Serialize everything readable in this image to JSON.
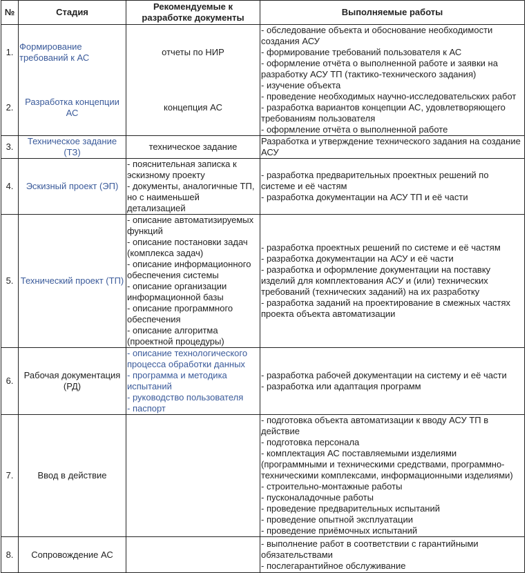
{
  "headers": {
    "num": "№",
    "stage": "Стадия",
    "docs": "Рекомендуемые к разработке документы",
    "works": "Выполняемые работы"
  },
  "rows": [
    {
      "num": "1.",
      "stage": "Формирование требований к АС",
      "stage_link": true,
      "docs": [
        "отчеты по НИР"
      ],
      "docs_align": "center",
      "works": [
        "- обследование объекта и обоснование необходимости создания АСУ",
        "- формирование требований пользователя к АС",
        "- оформление отчёта о выполненной работе и заявки на разработку АСУ ТП (тактико-технического задания)"
      ]
    },
    {
      "num": "2.",
      "stage": "Разработка концепции АС",
      "stage_link": true,
      "docs": [
        "концепция АС"
      ],
      "docs_align": "center",
      "works": [
        "- изучение объекта",
        "- проведение необходимых научно-исследовательских работ",
        "- разработка вариантов концепции АС, удовлетворяющего требованиям пользователя",
        "- оформление отчёта о выполненной работе"
      ]
    },
    {
      "num": "3.",
      "stage": "Техническое задание (ТЗ)",
      "stage_link": true,
      "docs": [
        "техническое задание"
      ],
      "docs_align": "center",
      "works": [
        "Разработка и утверждение технического задания на создание АСУ"
      ]
    },
    {
      "num": "4.",
      "stage": "Эскизный проект (ЭП)",
      "stage_link": true,
      "docs": [
        "- пояснительная записка к эскизному проекту",
        "- документы, аналогичные ТП, но с наименьшей детализацией"
      ],
      "docs_align": "left",
      "works": [
        "- разработка предварительных проектных решений по системе и её частям",
        "- разработка документации на АСУ ТП и её части"
      ]
    },
    {
      "num": "5.",
      "stage": "Технический проект (ТП)",
      "stage_link": true,
      "docs": [
        "- описание автоматизируемых функций",
        "- описание постановки задач (комплекса задач)",
        "- описание информационного обеспечения системы",
        "- описание организации информационной базы",
        "- описание программного обеспечения",
        "- описание алгоритма (проектной процедуры)"
      ],
      "docs_align": "left",
      "works": [
        "- разработка проектных решений по системе и её частям",
        "- разработка документации на АСУ и её части",
        "- разработка и оформление документации на поставку изделий для комплектования АСУ и (или) технических требований (технических заданий) на их разработку",
        "- разработка заданий на проектирование в смежных частях проекта объекта автоматизации"
      ]
    },
    {
      "num": "6.",
      "stage": "Рабочая документация (РД)",
      "stage_link": false,
      "docs": [
        "- описание технологического процесса обработки данных",
        "- программа и методика испытаний",
        "- руководство пользователя",
        "- паспорт"
      ],
      "docs_align": "left",
      "docs_link": true,
      "works": [
        "- разработка рабочей документации на систему и её части",
        "- разработка или адаптация программ"
      ]
    },
    {
      "num": "7.",
      "stage": "Ввод в действие",
      "stage_link": false,
      "docs": [],
      "docs_align": "center",
      "works": [
        "- подготовка объекта автоматизации к вводу АСУ ТП в действие",
        "- подготовка персонала",
        "- комплектация АС поставляемыми изделиями (программными и техническими средствами, программно-техническими комплексами, информационными изделиями)",
        "- строительно-монтажные работы",
        "- пусконаладочные работы",
        "- проведение предварительных испытаний",
        "- проведение опытной эксплуатации",
        "- проведение приёмочных испытаний"
      ]
    },
    {
      "num": "8.",
      "stage": "Сопровождение АС",
      "stage_link": false,
      "docs": [],
      "docs_align": "center",
      "works": [
        "- выполнение работ в соответствии с гарантийными обязательствами",
        "- послегарантийное обслуживание"
      ]
    }
  ],
  "colors": {
    "link": "#3a5a9a",
    "text": "#222222",
    "border": "#222222"
  }
}
